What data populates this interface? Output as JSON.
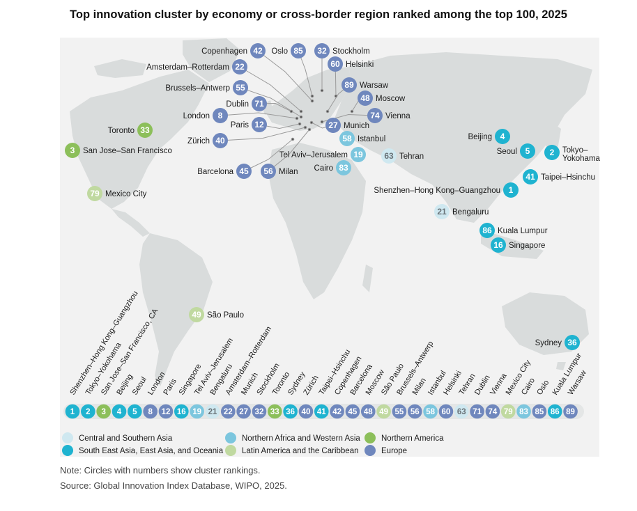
{
  "title": "Top innovation cluster by economy or cross-border region ranked among the top 100, 2025",
  "colors": {
    "central_southern_asia": "#cfe8f0",
    "east_asia_oceania": "#1fb3d0",
    "north_africa_west_asia": "#7cc6de",
    "latin_america": "#c0d9a0",
    "northern_america": "#8cbf5a",
    "europe": "#6f87bd"
  },
  "map_clusters": [
    {
      "rank": "42",
      "name": "Copenhagen",
      "region": "europe"
    },
    {
      "rank": "85",
      "name": "Oslo",
      "region": "europe"
    },
    {
      "rank": "32",
      "name": "Stockholm",
      "region": "europe"
    },
    {
      "rank": "22",
      "name": "Amsterdam–Rotterdam",
      "region": "europe"
    },
    {
      "rank": "60",
      "name": "Helsinki",
      "region": "europe"
    },
    {
      "rank": "55",
      "name": "Brussels–Antwerp",
      "region": "europe"
    },
    {
      "rank": "89",
      "name": "Warsaw",
      "region": "europe"
    },
    {
      "rank": "48",
      "name": "Moscow",
      "region": "europe"
    },
    {
      "rank": "71",
      "name": "Dublin",
      "region": "europe"
    },
    {
      "rank": "74",
      "name": "Vienna",
      "region": "europe"
    },
    {
      "rank": "8",
      "name": "London",
      "region": "europe"
    },
    {
      "rank": "12",
      "name": "Paris",
      "region": "europe"
    },
    {
      "rank": "27",
      "name": "Munich",
      "region": "europe"
    },
    {
      "rank": "40",
      "name": "Zürich",
      "region": "europe"
    },
    {
      "rank": "58",
      "name": "Istanbul",
      "region": "north_africa_west_asia"
    },
    {
      "rank": "19",
      "name": "Tel Aviv–Jerusalem",
      "region": "north_africa_west_asia"
    },
    {
      "rank": "83",
      "name": "Cairo",
      "region": "north_africa_west_asia"
    },
    {
      "rank": "63",
      "name": "Tehran",
      "region": "central_southern_asia"
    },
    {
      "rank": "45",
      "name": "Barcelona",
      "region": "europe"
    },
    {
      "rank": "56",
      "name": "Milan",
      "region": "europe"
    },
    {
      "rank": "33",
      "name": "Toronto",
      "region": "northern_america"
    },
    {
      "rank": "3",
      "name": "San Jose–San Francisco",
      "region": "northern_america"
    },
    {
      "rank": "79",
      "name": "Mexico City",
      "region": "latin_america"
    },
    {
      "rank": "49",
      "name": "São Paulo",
      "region": "latin_america"
    },
    {
      "rank": "4",
      "name": "Beijing",
      "region": "east_asia_oceania"
    },
    {
      "rank": "5",
      "name": "Seoul",
      "region": "east_asia_oceania"
    },
    {
      "rank": "2",
      "name": "Tokyo–Yokohama",
      "region": "east_asia_oceania"
    },
    {
      "rank": "41",
      "name": "Taipei–Hsinchu",
      "region": "east_asia_oceania"
    },
    {
      "rank": "1",
      "name": "Shenzhen–Hong Kong–Guangzhou",
      "region": "east_asia_oceania"
    },
    {
      "rank": "21",
      "name": "Bengaluru",
      "region": "central_southern_asia"
    },
    {
      "rank": "86",
      "name": "Kuala Lumpur",
      "region": "east_asia_oceania"
    },
    {
      "rank": "16",
      "name": "Singapore",
      "region": "east_asia_oceania"
    },
    {
      "rank": "36",
      "name": "Sydney",
      "region": "east_asia_oceania"
    }
  ],
  "ranking_bar": [
    {
      "rank": "1",
      "name": "Shenzhen–Hong Kong–Guangzhou",
      "region": "east_asia_oceania"
    },
    {
      "rank": "2",
      "name": "Tokyo–Yokohama",
      "region": "east_asia_oceania"
    },
    {
      "rank": "3",
      "name": "San Jose–San Francisco, CA",
      "region": "northern_america"
    },
    {
      "rank": "4",
      "name": "Beijing",
      "region": "east_asia_oceania"
    },
    {
      "rank": "5",
      "name": "Seoul",
      "region": "east_asia_oceania"
    },
    {
      "rank": "8",
      "name": "London",
      "region": "europe"
    },
    {
      "rank": "12",
      "name": "Paris",
      "region": "europe"
    },
    {
      "rank": "16",
      "name": "Singapore",
      "region": "east_asia_oceania"
    },
    {
      "rank": "19",
      "name": "Tel Aviv–Jerusalem",
      "region": "north_africa_west_asia"
    },
    {
      "rank": "21",
      "name": "Bengaluru",
      "region": "central_southern_asia"
    },
    {
      "rank": "22",
      "name": "Amsterdam–Rotterdam",
      "region": "europe"
    },
    {
      "rank": "27",
      "name": "Munich",
      "region": "europe"
    },
    {
      "rank": "32",
      "name": "Stockholm",
      "region": "europe"
    },
    {
      "rank": "33",
      "name": "Toronto",
      "region": "northern_america"
    },
    {
      "rank": "36",
      "name": "Sydney",
      "region": "east_asia_oceania"
    },
    {
      "rank": "40",
      "name": "Zürich",
      "region": "europe"
    },
    {
      "rank": "41",
      "name": "Taipei–Hsinchu",
      "region": "east_asia_oceania"
    },
    {
      "rank": "42",
      "name": "Copenhagen",
      "region": "europe"
    },
    {
      "rank": "45",
      "name": "Barcelona",
      "region": "europe"
    },
    {
      "rank": "48",
      "name": "Moscow",
      "region": "europe"
    },
    {
      "rank": "49",
      "name": "São Paulo",
      "region": "latin_america"
    },
    {
      "rank": "55",
      "name": "Brussels–Antwerp",
      "region": "europe"
    },
    {
      "rank": "56",
      "name": "Milan",
      "region": "europe"
    },
    {
      "rank": "58",
      "name": "Istanbul",
      "region": "north_africa_west_asia"
    },
    {
      "rank": "60",
      "name": "Helsinki",
      "region": "europe"
    },
    {
      "rank": "63",
      "name": "Tehran",
      "region": "central_southern_asia"
    },
    {
      "rank": "71",
      "name": "Dublin",
      "region": "europe"
    },
    {
      "rank": "74",
      "name": "Vienna",
      "region": "europe"
    },
    {
      "rank": "79",
      "name": "Mexico City",
      "region": "latin_america"
    },
    {
      "rank": "83",
      "name": "Cairo",
      "region": "north_africa_west_asia"
    },
    {
      "rank": "85",
      "name": "Oslo",
      "region": "europe"
    },
    {
      "rank": "86",
      "name": "Kuala Lumpur",
      "region": "east_asia_oceania"
    },
    {
      "rank": "89",
      "name": "Warsaw",
      "region": "europe"
    }
  ],
  "legend": [
    {
      "label": "Central and Southern Asia",
      "region": "central_southern_asia"
    },
    {
      "label": "South East Asia, East Asia, and Oceania",
      "region": "east_asia_oceania"
    },
    {
      "label": "Northern Africa and Western Asia",
      "region": "north_africa_west_asia"
    },
    {
      "label": "Latin America and the Caribbean",
      "region": "latin_america"
    },
    {
      "label": "Northern America",
      "region": "northern_america"
    },
    {
      "label": "Europe",
      "region": "europe"
    }
  ],
  "note": "Note: Circles with numbers show cluster rankings.",
  "source": "Source: Global Innovation Index Database, WIPO, 2025."
}
